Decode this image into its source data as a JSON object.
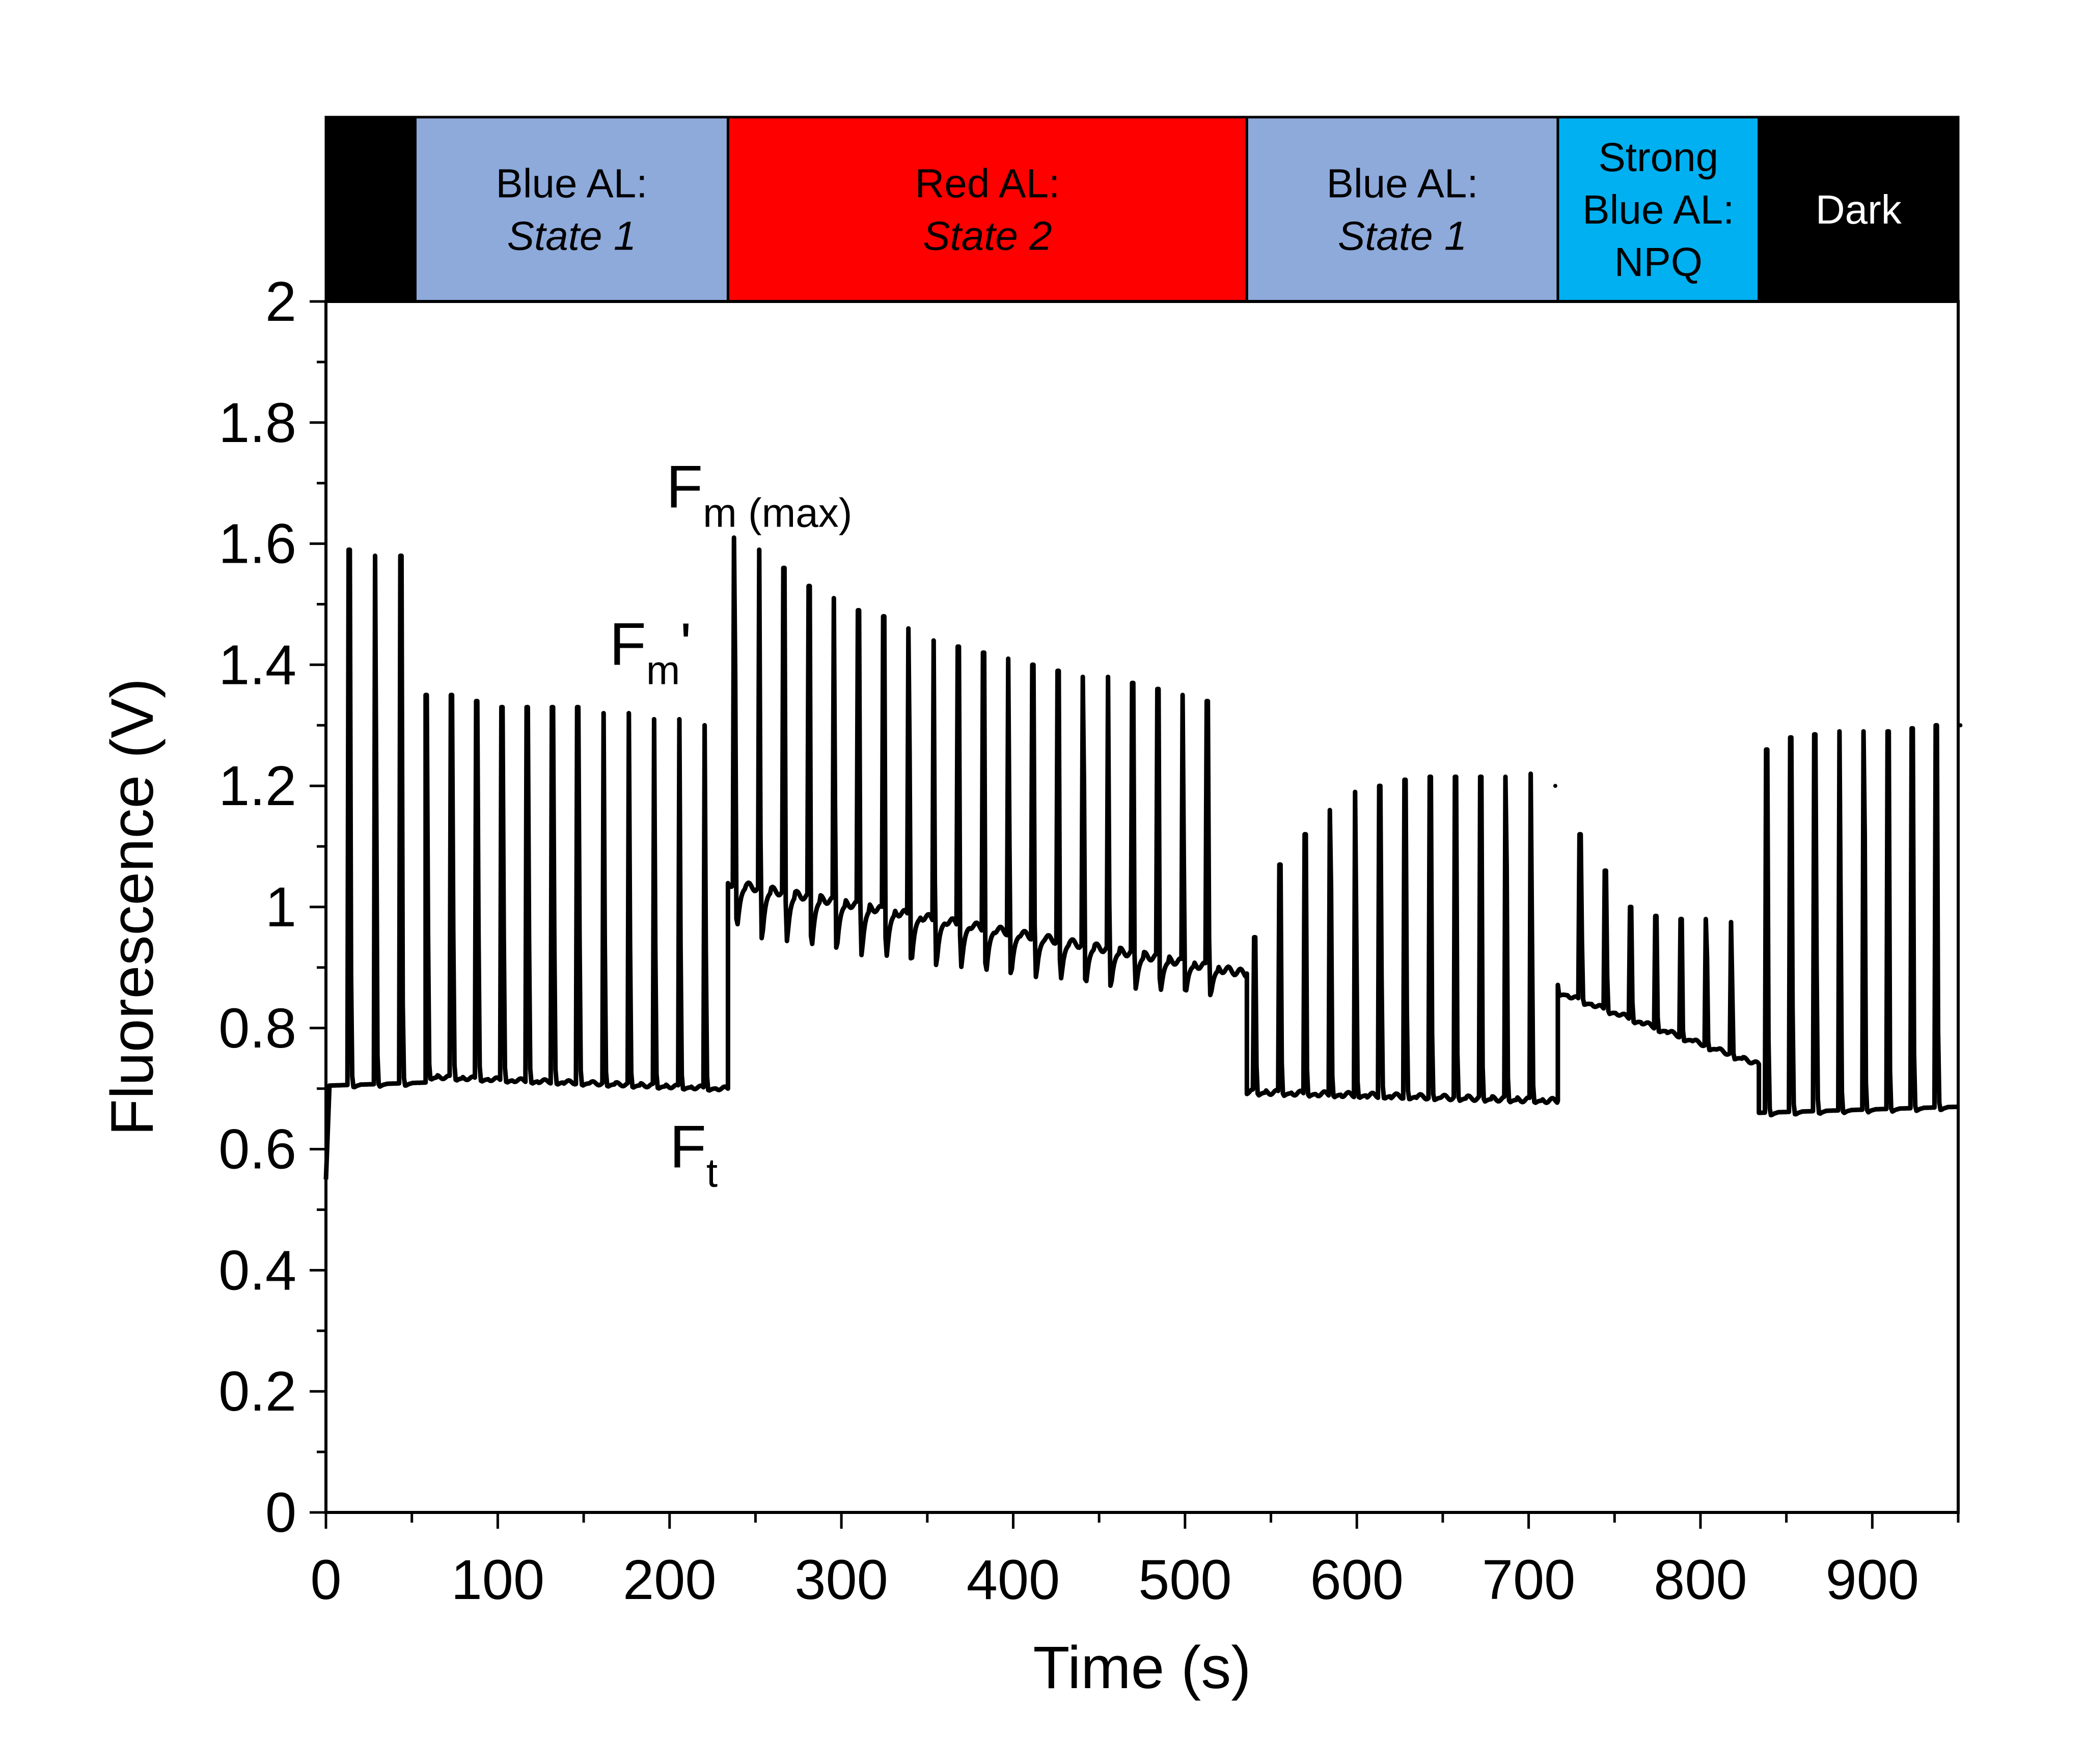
{
  "chart_data": {
    "type": "line",
    "xlabel": "Time (s)",
    "ylabel": "Fluorescence (V)",
    "xlim": [
      0,
      950
    ],
    "ylim": [
      0,
      2
    ],
    "x_ticks": [
      "0",
      "100",
      "200",
      "300",
      "400",
      "500",
      "600",
      "700",
      "800",
      "900"
    ],
    "y_ticks": [
      "0",
      "0.2",
      "0.4",
      "0.6",
      "0.8",
      "1",
      "1.2",
      "1.4",
      "1.6",
      "1.8",
      "2"
    ],
    "light_periods": [
      {
        "x_start": 0,
        "x_end": 52,
        "color": "#000000",
        "line1": "",
        "line2": "",
        "line3": ""
      },
      {
        "x_start": 52,
        "x_end": 234,
        "color": "#8eaadb",
        "line1": "Blue AL:",
        "line2": "State 1",
        "line3": ""
      },
      {
        "x_start": 234,
        "x_end": 536,
        "color": "#ff0000",
        "line1": "Red AL:",
        "line2": "State 2",
        "line3": ""
      },
      {
        "x_start": 536,
        "x_end": 717,
        "color": "#8eaadb",
        "line1": "Blue AL:",
        "line2": "State 1",
        "line3": ""
      },
      {
        "x_start": 717,
        "x_end": 834,
        "color": "#00b0f0",
        "line1": "Strong",
        "line2": "Blue AL:",
        "line3": "NPQ"
      },
      {
        "x_start": 834,
        "x_end": 950,
        "color": "#000000",
        "line1": "Dark",
        "line2": "",
        "line3": ""
      }
    ],
    "annotations": [
      {
        "main": "F",
        "sub": "m (max)",
        "prime": "",
        "x": 198,
        "y": 1.66
      },
      {
        "main": "F",
        "sub": "m",
        "prime": "'",
        "x": 165,
        "y": 1.4
      },
      {
        "main": "F",
        "sub": "t",
        "prime": "",
        "x": 200,
        "y": 0.57
      }
    ],
    "segments": [
      {
        "x0": 0,
        "x1": 2,
        "base_start": 0.55,
        "base_end": 0.7,
        "pulse_start": 15,
        "interval": 15,
        "count": 0,
        "peaks": [],
        "dips": [],
        "wobble": 0
      },
      {
        "x0": 2,
        "x1": 58,
        "base_start": 0.705,
        "base_end": 0.71,
        "pulse_start": 13,
        "interval": 15,
        "count": 3,
        "peaks": [
          1.59,
          1.58,
          1.58
        ],
        "dips": [],
        "wobble": 0
      },
      {
        "x0": 58,
        "x1": 234,
        "base_start": 0.72,
        "base_end": 0.7,
        "pulse_start": 58,
        "interval": 14.7,
        "count": 12,
        "peaks": [
          1.35,
          1.35,
          1.34,
          1.33,
          1.33,
          1.33,
          1.33,
          1.32,
          1.32,
          1.31,
          1.31,
          1.3
        ],
        "dips": [],
        "wobble": 0.003
      },
      {
        "x0": 234,
        "x1": 536,
        "base_start": 1.04,
        "base_end": 0.89,
        "pulse_start": 237,
        "interval": 14.5,
        "count": 20,
        "peaks": [
          1.61,
          1.59,
          1.56,
          1.53,
          1.51,
          1.49,
          1.48,
          1.46,
          1.44,
          1.43,
          1.42,
          1.41,
          1.4,
          1.39,
          1.38,
          1.38,
          1.37,
          1.36,
          1.35,
          1.34
        ],
        "dips": [
          0.86,
          0.83,
          0.83,
          0.82,
          0.82,
          0.81,
          0.81,
          0.8,
          0.8,
          0.8,
          0.79,
          0.79,
          0.79,
          0.79,
          0.78,
          0.78,
          0.78,
          0.78,
          0.78,
          0.78
        ],
        "wobble": 0.006
      },
      {
        "x0": 536,
        "x1": 717,
        "base_start": 0.695,
        "base_end": 0.68,
        "pulse_start": 540,
        "interval": 14.6,
        "count": 12,
        "peaks": [
          0.95,
          1.07,
          1.12,
          1.16,
          1.19,
          1.2,
          1.21,
          1.215,
          1.215,
          1.215,
          1.215,
          1.22
        ],
        "dips": [],
        "wobble": 0.004
      },
      {
        "x0": 717,
        "x1": 834,
        "base_start": 0.86,
        "base_end": 0.74,
        "pulse_start": 715,
        "interval": 14.6,
        "count": 8,
        "peaks": [
          1.2,
          1.12,
          1.06,
          1.0,
          0.985,
          0.98,
          0.98,
          0.975
        ],
        "dips": [],
        "wobble": 0.003
      },
      {
        "x0": 834,
        "x1": 950,
        "base_start": 0.66,
        "base_end": 0.67,
        "pulse_start": 838,
        "interval": 14.1,
        "count": 9,
        "peaks": [
          1.26,
          1.28,
          1.285,
          1.29,
          1.29,
          1.29,
          1.295,
          1.3,
          1.3
        ],
        "dips": [],
        "wobble": 0
      }
    ]
  }
}
